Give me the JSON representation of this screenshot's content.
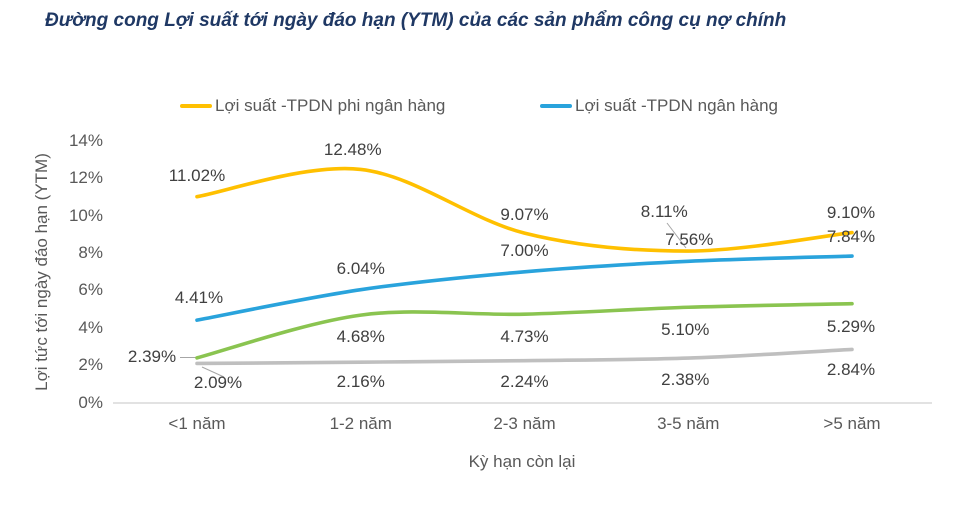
{
  "title": "Đường cong Lợi suất tới ngày đáo hạn (YTM) của các sản phẩm công cụ nợ chính",
  "colors": {
    "title_text": "#1F3864",
    "axis_text": "#595959",
    "data_label_text": "#404040",
    "axis_line": "#D9D9D9",
    "leader_line": "#A6A6A6",
    "series_nonbank": "#FFC000",
    "series_bank": "#29A3DC",
    "series_green": "#8AC450",
    "series_gray": "#BFBFBF"
  },
  "legend": {
    "items": [
      {
        "label": "Lợi suất -TPDN phi ngân hàng",
        "color": "#FFC000"
      },
      {
        "label": "Lợi suất -TPDN ngân hàng",
        "color": "#29A3DC"
      }
    ]
  },
  "chart_data": {
    "type": "line",
    "title": "Đường cong Lợi suất tới ngày đáo hạn (YTM) của các sản phẩm công cụ nợ chính",
    "xlabel": "Kỳ hạn còn lại",
    "ylabel": "Lợi tức tới ngày đáo hạn (YTM)",
    "categories": [
      "<1 năm",
      "1-2 năm",
      "2-3 năm",
      "3-5 năm",
      ">5 năm"
    ],
    "series": [
      {
        "key": "tpdn-phi-ngan-hang",
        "name": "Lợi suất -TPDN phi ngân hàng",
        "color": "#FFC000",
        "values": [
          11.02,
          12.48,
          9.07,
          8.11,
          9.1
        ],
        "labels": [
          "11.02%",
          "12.48%",
          "9.07%",
          "8.11%",
          "9.10%"
        ]
      },
      {
        "key": "tpdn-ngan-hang",
        "name": "Lợi suất -TPDN ngân hàng",
        "color": "#29A3DC",
        "values": [
          4.41,
          6.04,
          7.0,
          7.56,
          7.84
        ],
        "labels": [
          "4.41%",
          "6.04%",
          "7.00%",
          "7.56%",
          "7.84%"
        ]
      },
      {
        "key": "green-series",
        "name": "",
        "color": "#8AC450",
        "values": [
          2.39,
          4.68,
          4.73,
          5.1,
          5.29
        ],
        "labels": [
          "2.39%",
          "4.68%",
          "4.73%",
          "5.10%",
          "5.29%"
        ]
      },
      {
        "key": "gray-series",
        "name": "",
        "color": "#BFBFBF",
        "values": [
          2.09,
          2.16,
          2.24,
          2.38,
          2.84
        ],
        "labels": [
          "2.09%",
          "2.16%",
          "2.24%",
          "2.38%",
          "2.84%"
        ]
      }
    ],
    "ylim": [
      0,
      14
    ],
    "yticks": [
      "0%",
      "2%",
      "4%",
      "6%",
      "8%",
      "10%",
      "12%",
      "14%"
    ],
    "ytick_values": [
      0,
      2,
      4,
      6,
      8,
      10,
      12,
      14
    ],
    "grid": false,
    "legend_position": "top",
    "line_style": "smooth"
  }
}
